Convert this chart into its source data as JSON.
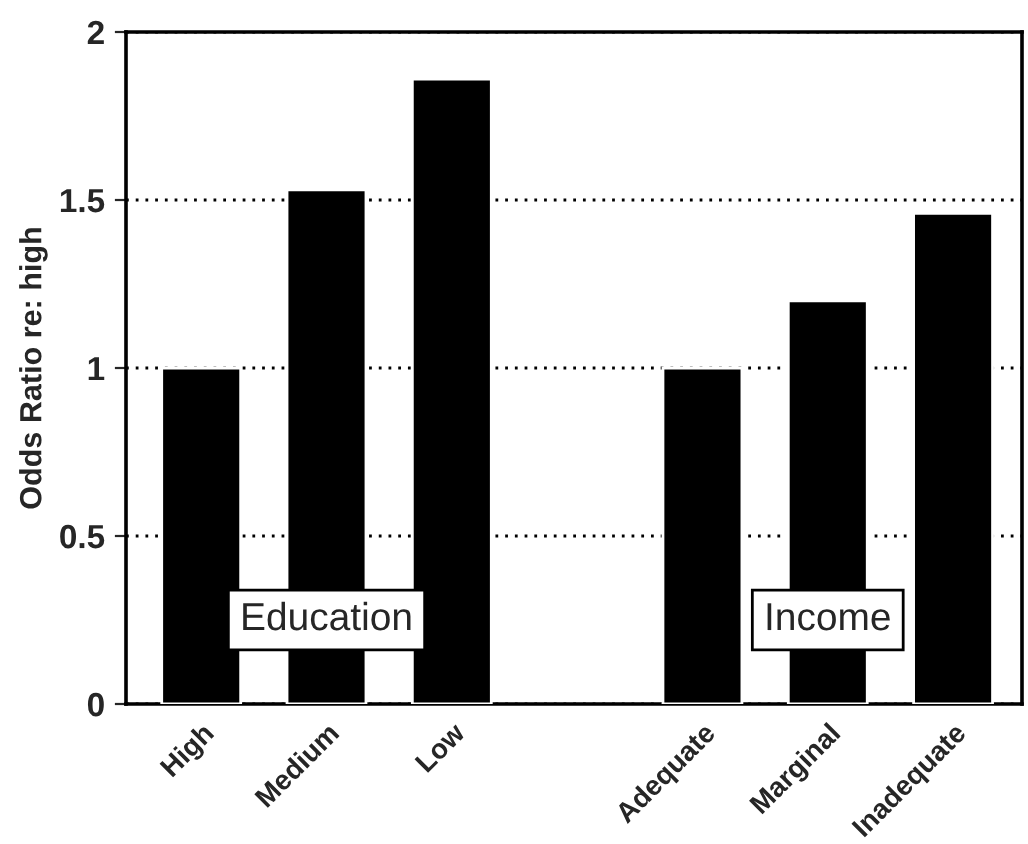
{
  "chart_data": {
    "type": "bar",
    "ylabel": "Odds Ratio re: high",
    "categories": [
      "High",
      "Medium",
      "Low",
      null,
      "Adequate",
      "Marginal",
      "Inadequate"
    ],
    "values": [
      1.0,
      1.53,
      1.86,
      null,
      1.0,
      1.2,
      1.46
    ],
    "color": "#000000",
    "ylim": [
      0,
      2
    ],
    "yticks": [
      0,
      {
        "value": 0.5,
        "label": "0.5"
      },
      1,
      {
        "value": 1.5,
        "label": "1.5"
      },
      2
    ],
    "grid": "y",
    "annotations": [
      "Education",
      "Income"
    ]
  }
}
